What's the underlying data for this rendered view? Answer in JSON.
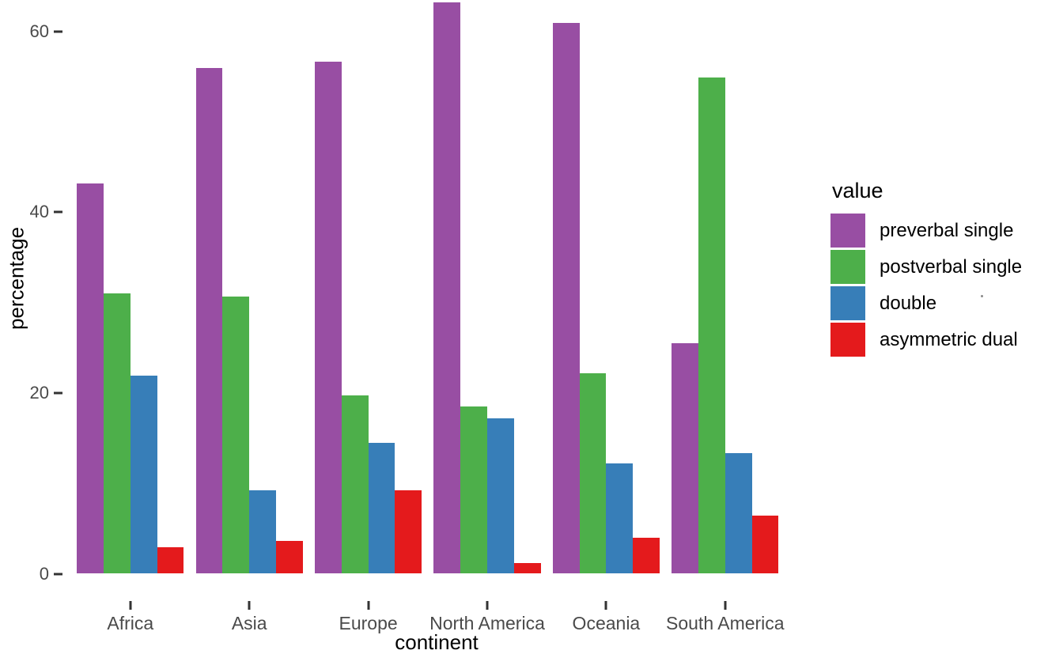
{
  "chart_data": {
    "type": "bar",
    "title": "",
    "xlabel": "continent",
    "ylabel": "percentage",
    "categories": [
      "Africa",
      "Asia",
      "Europe",
      "North America",
      "Oceania",
      "South America"
    ],
    "series": [
      {
        "name": "preverbal single",
        "color": "#984EA3",
        "values": [
          43.2,
          55.9,
          56.6,
          63.2,
          60.9,
          25.5
        ]
      },
      {
        "name": "postverbal single",
        "color": "#4DAF4A",
        "values": [
          31.0,
          30.7,
          19.7,
          18.5,
          22.2,
          54.9
        ]
      },
      {
        "name": "double",
        "color": "#377EB8",
        "values": [
          21.9,
          9.2,
          14.5,
          17.2,
          12.2,
          13.3
        ]
      },
      {
        "name": "asymmetric dual",
        "color": "#E41A1C",
        "values": [
          2.9,
          3.6,
          9.2,
          1.2,
          4.0,
          6.4
        ]
      }
    ],
    "ylim": [
      0,
      63.5
    ],
    "yticks": [
      0,
      20,
      40,
      60
    ],
    "ytick_labels": [
      "0",
      "20",
      "40",
      "60"
    ],
    "grid": false,
    "legend_title": "value",
    "legend_position": "right"
  }
}
